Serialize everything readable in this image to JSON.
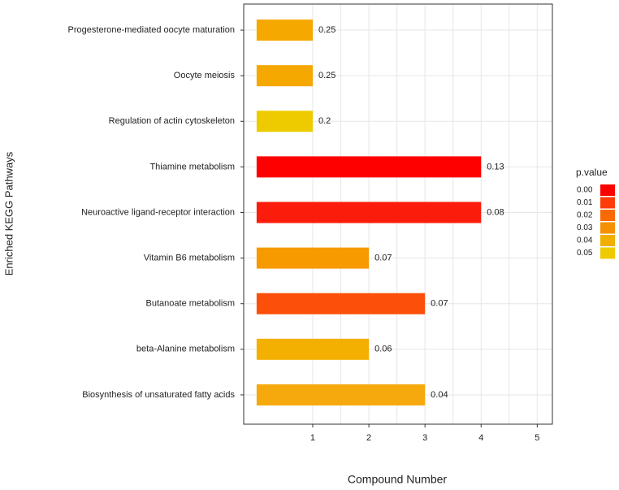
{
  "chart_data": {
    "type": "hbar",
    "y_label": "Enriched KEGG Pathways",
    "x_label": "Compound Number",
    "categories": [
      "Progesterone-mediated oocyte maturation",
      "Oocyte meiosis",
      "Regulation of actin cytoskeleton",
      "Thiamine metabolism",
      "Neuroactive ligand-receptor interaction",
      "Vitamin B6 metabolism",
      "Butanoate metabolism",
      "beta-Alanine metabolism",
      "Biosynthesis of unsaturated fatty acids"
    ],
    "values": [
      1,
      1,
      1,
      4,
      4,
      2,
      3,
      2,
      3
    ],
    "p_values": [
      0.25,
      0.25,
      0.2,
      0.13,
      0.08,
      0.07,
      0.07,
      0.06,
      0.04
    ],
    "colors": [
      "#f5a800",
      "#f5a800",
      "#eecb00",
      "#ff0000",
      "#fb1c0b",
      "#f79a00",
      "#fc500a",
      "#f4b000",
      "#f5a90c"
    ],
    "xlim": [
      -0.23,
      5.27
    ],
    "xticks": [
      1,
      2,
      3,
      4,
      5
    ],
    "grid": true,
    "legend": {
      "title": "p.value",
      "position": "right",
      "items": [
        {
          "label": "0.00",
          "color": "#ff0000"
        },
        {
          "label": "0.01",
          "color": "#fc3c0a"
        },
        {
          "label": "0.02",
          "color": "#f96a06"
        },
        {
          "label": "0.03",
          "color": "#f58f03"
        },
        {
          "label": "0.04",
          "color": "#f2ae01"
        },
        {
          "label": "0.05",
          "color": "#eecb00"
        }
      ]
    }
  }
}
